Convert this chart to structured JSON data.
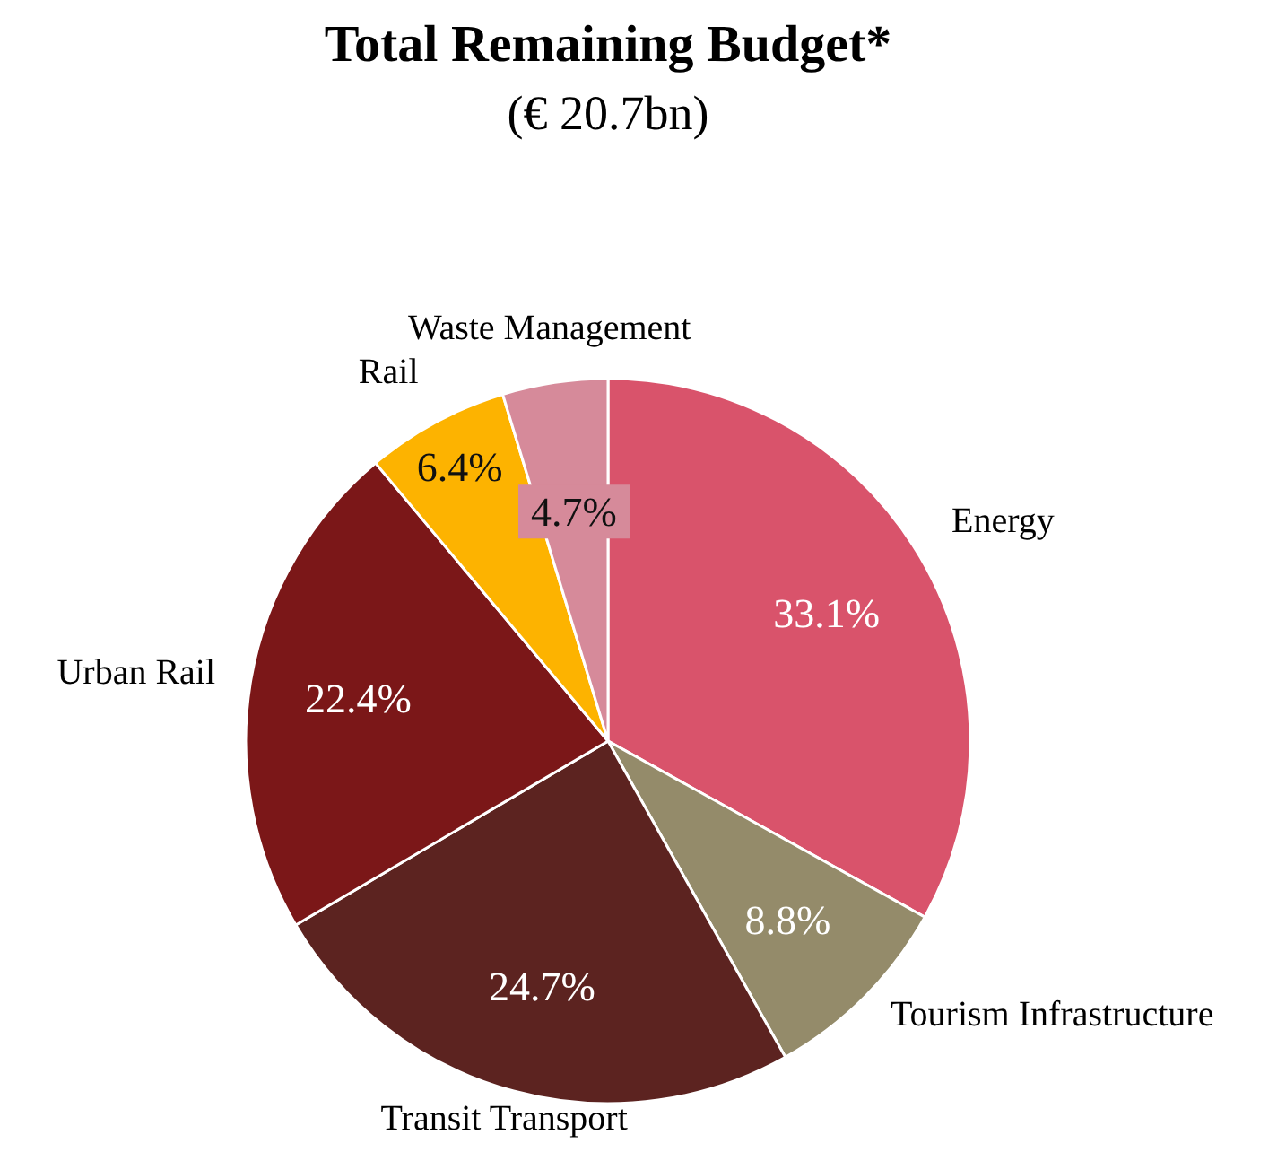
{
  "chart_data": {
    "type": "pie",
    "title": "Total Remaining Budget*",
    "subtitle": "(€ 20.7bn)",
    "categories": [
      "Energy",
      "Tourism Infrastructure",
      "Transit Transport",
      "Urban Rail",
      "Rail",
      "Waste Management"
    ],
    "values": [
      33.1,
      8.8,
      24.7,
      22.4,
      6.4,
      4.7
    ],
    "colors": [
      "#d9536b",
      "#948b6a",
      "#5c2320",
      "#7b1718",
      "#fdb300",
      "#d68a9a"
    ],
    "value_labels": [
      "33.1%",
      "8.8%",
      "24.7%",
      "22.4%",
      "6.4%",
      "4.7%"
    ]
  }
}
